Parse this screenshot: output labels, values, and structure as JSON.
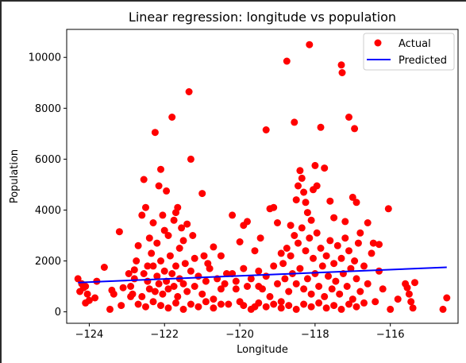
{
  "chart_data": {
    "type": "scatter",
    "title": "Linear regression: longitude vs population",
    "xlabel": "Longitude",
    "ylabel": "Population",
    "xlim": [
      -124.6,
      -114.2
    ],
    "ylim": [
      -450,
      11100
    ],
    "xticks": [
      -124,
      -122,
      -120,
      -118,
      -116
    ],
    "xtick_labels": [
      "−124",
      "−122",
      "−120",
      "−118",
      "−116"
    ],
    "yticks": [
      0,
      2000,
      4000,
      6000,
      8000,
      10000
    ],
    "ytick_labels": [
      "0",
      "2000",
      "4000",
      "6000",
      "8000",
      "10000"
    ],
    "grid": false,
    "legend_position": "top-right",
    "colors": {
      "actual": "#ff0000",
      "predicted": "#0000ff"
    },
    "series": [
      {
        "name": "Actual",
        "kind": "scatter",
        "points": [
          [
            -124.3,
            1300
          ],
          [
            -124.25,
            800
          ],
          [
            -124.2,
            1100
          ],
          [
            -124.15,
            950
          ],
          [
            -124.1,
            1000
          ],
          [
            -124.05,
            700
          ],
          [
            -124.1,
            350
          ],
          [
            -124.0,
            450
          ],
          [
            -123.85,
            550
          ],
          [
            -123.8,
            1200
          ],
          [
            -123.6,
            1750
          ],
          [
            -123.45,
            100
          ],
          [
            -123.4,
            850
          ],
          [
            -123.35,
            700
          ],
          [
            -123.2,
            3150
          ],
          [
            -123.1,
            950
          ],
          [
            -123.15,
            250
          ],
          [
            -122.95,
            1500
          ],
          [
            -122.9,
            600
          ],
          [
            -122.8,
            1650
          ],
          [
            -122.75,
            2000
          ],
          [
            -122.7,
            2600
          ],
          [
            -122.6,
            3800
          ],
          [
            -122.55,
            5200
          ],
          [
            -122.5,
            4100
          ],
          [
            -122.45,
            1800
          ],
          [
            -122.4,
            2900
          ],
          [
            -122.35,
            2300
          ],
          [
            -122.3,
            3500
          ],
          [
            -122.25,
            7050
          ],
          [
            -122.2,
            2700
          ],
          [
            -122.15,
            4950
          ],
          [
            -122.1,
            5600
          ],
          [
            -122.05,
            3800
          ],
          [
            -122.0,
            3200
          ],
          [
            -121.95,
            4750
          ],
          [
            -121.9,
            3000
          ],
          [
            -121.8,
            7650
          ],
          [
            -121.75,
            3600
          ],
          [
            -121.7,
            3900
          ],
          [
            -121.65,
            4100
          ],
          [
            -121.6,
            2500
          ],
          [
            -121.55,
            3300
          ],
          [
            -121.5,
            2800
          ],
          [
            -121.4,
            3450
          ],
          [
            -121.35,
            8650
          ],
          [
            -121.3,
            6000
          ],
          [
            -121.25,
            3000
          ],
          [
            -121.2,
            2100
          ],
          [
            -121.0,
            4650
          ],
          [
            -120.95,
            2200
          ],
          [
            -120.85,
            1900
          ],
          [
            -120.7,
            2550
          ],
          [
            -120.5,
            2200
          ],
          [
            -120.35,
            1500
          ],
          [
            -120.2,
            3800
          ],
          [
            -120.1,
            900
          ],
          [
            -120.0,
            2750
          ],
          [
            -119.9,
            3400
          ],
          [
            -119.8,
            3550
          ],
          [
            -119.6,
            2400
          ],
          [
            -119.5,
            1000
          ],
          [
            -119.45,
            2900
          ],
          [
            -119.3,
            7150
          ],
          [
            -119.2,
            4050
          ],
          [
            -119.1,
            4100
          ],
          [
            -119.0,
            3500
          ],
          [
            -118.9,
            2300
          ],
          [
            -118.75,
            9850
          ],
          [
            -118.65,
            3400
          ],
          [
            -118.55,
            7450
          ],
          [
            -118.5,
            4400
          ],
          [
            -118.45,
            4950
          ],
          [
            -118.4,
            5550
          ],
          [
            -118.35,
            5250
          ],
          [
            -118.3,
            4700
          ],
          [
            -118.25,
            4300
          ],
          [
            -118.2,
            3900
          ],
          [
            -118.15,
            10500
          ],
          [
            -118.1,
            3600
          ],
          [
            -118.05,
            4800
          ],
          [
            -118.0,
            5750
          ],
          [
            -117.95,
            4950
          ],
          [
            -117.85,
            7250
          ],
          [
            -117.75,
            5650
          ],
          [
            -117.6,
            4350
          ],
          [
            -117.5,
            3700
          ],
          [
            -117.3,
            9700
          ],
          [
            -117.28,
            9400
          ],
          [
            -117.2,
            3550
          ],
          [
            -117.1,
            7650
          ],
          [
            -117.0,
            4500
          ],
          [
            -116.95,
            7200
          ],
          [
            -116.9,
            4300
          ],
          [
            -116.8,
            3100
          ],
          [
            -116.6,
            3500
          ],
          [
            -116.45,
            2700
          ],
          [
            -116.3,
            2650
          ],
          [
            -116.05,
            4050
          ],
          [
            -116.0,
            100
          ],
          [
            -115.8,
            500
          ],
          [
            -115.6,
            1100
          ],
          [
            -115.55,
            950
          ],
          [
            -115.5,
            700
          ],
          [
            -115.45,
            400
          ],
          [
            -115.4,
            150
          ],
          [
            -115.35,
            1150
          ],
          [
            -114.6,
            100
          ],
          [
            -114.5,
            550
          ],
          [
            -122.9,
            1000
          ],
          [
            -122.85,
            700
          ],
          [
            -122.8,
            1300
          ],
          [
            -122.6,
            600
          ],
          [
            -122.55,
            1500
          ],
          [
            -122.45,
            1200
          ],
          [
            -122.4,
            900
          ],
          [
            -122.3,
            1800
          ],
          [
            -122.25,
            800
          ],
          [
            -122.2,
            1400
          ],
          [
            -122.15,
            1100
          ],
          [
            -122.1,
            2000
          ],
          [
            -122.05,
            700
          ],
          [
            -122.0,
            1600
          ],
          [
            -121.95,
            1200
          ],
          [
            -121.9,
            900
          ],
          [
            -121.85,
            2200
          ],
          [
            -121.8,
            1500
          ],
          [
            -121.75,
            1000
          ],
          [
            -121.7,
            1800
          ],
          [
            -121.65,
            600
          ],
          [
            -121.6,
            1300
          ],
          [
            -121.5,
            1100
          ],
          [
            -121.45,
            1900
          ],
          [
            -121.4,
            800
          ],
          [
            -121.3,
            1600
          ],
          [
            -121.2,
            1000
          ],
          [
            -121.1,
            1400
          ],
          [
            -121.0,
            700
          ],
          [
            -120.9,
            1200
          ],
          [
            -120.8,
            1700
          ],
          [
            -120.7,
            500
          ],
          [
            -120.6,
            1300
          ],
          [
            -120.5,
            900
          ],
          [
            -120.4,
            1100
          ],
          [
            -120.3,
            300
          ],
          [
            -120.2,
            1500
          ],
          [
            -120.1,
            1200
          ],
          [
            -120.0,
            400
          ],
          [
            -119.9,
            1700
          ],
          [
            -119.8,
            1000
          ],
          [
            -119.7,
            1300
          ],
          [
            -119.6,
            200
          ],
          [
            -119.5,
            1600
          ],
          [
            -119.4,
            900
          ],
          [
            -119.3,
            1400
          ],
          [
            -119.2,
            600
          ],
          [
            -119.1,
            1800
          ],
          [
            -119.0,
            1100
          ],
          [
            -118.9,
            400
          ],
          [
            -118.85,
            1900
          ],
          [
            -118.8,
            1300
          ],
          [
            -118.75,
            2500
          ],
          [
            -118.7,
            800
          ],
          [
            -118.65,
            2200
          ],
          [
            -118.6,
            1500
          ],
          [
            -118.55,
            3000
          ],
          [
            -118.5,
            1100
          ],
          [
            -118.45,
            2700
          ],
          [
            -118.4,
            1700
          ],
          [
            -118.35,
            3300
          ],
          [
            -118.3,
            900
          ],
          [
            -118.25,
            2400
          ],
          [
            -118.2,
            1300
          ],
          [
            -118.15,
            2900
          ],
          [
            -118.1,
            700
          ],
          [
            -118.05,
            2100
          ],
          [
            -118.0,
            1500
          ],
          [
            -117.95,
            3100
          ],
          [
            -117.9,
            1000
          ],
          [
            -117.85,
            2500
          ],
          [
            -117.8,
            1800
          ],
          [
            -117.75,
            600
          ],
          [
            -117.7,
            2200
          ],
          [
            -117.65,
            1400
          ],
          [
            -117.6,
            2800
          ],
          [
            -117.55,
            900
          ],
          [
            -117.5,
            1900
          ],
          [
            -117.45,
            1200
          ],
          [
            -117.4,
            2600
          ],
          [
            -117.35,
            700
          ],
          [
            -117.3,
            2100
          ],
          [
            -117.25,
            1500
          ],
          [
            -117.2,
            2900
          ],
          [
            -117.15,
            1000
          ],
          [
            -117.1,
            2400
          ],
          [
            -117.05,
            1700
          ],
          [
            -117.0,
            500
          ],
          [
            -116.95,
            2000
          ],
          [
            -116.9,
            1300
          ],
          [
            -116.85,
            2700
          ],
          [
            -116.8,
            800
          ],
          [
            -116.7,
            1800
          ],
          [
            -116.6,
            1100
          ],
          [
            -116.5,
            2300
          ],
          [
            -116.4,
            400
          ],
          [
            -116.3,
            1600
          ],
          [
            -116.2,
            900
          ],
          [
            -122.7,
            300
          ],
          [
            -122.5,
            200
          ],
          [
            -122.3,
            400
          ],
          [
            -122.1,
            250
          ],
          [
            -121.9,
            150
          ],
          [
            -121.7,
            350
          ],
          [
            -121.5,
            100
          ],
          [
            -121.3,
            300
          ],
          [
            -121.1,
            200
          ],
          [
            -120.9,
            400
          ],
          [
            -120.7,
            150
          ],
          [
            -120.5,
            300
          ],
          [
            -119.9,
            250
          ],
          [
            -119.7,
            100
          ],
          [
            -119.5,
            350
          ],
          [
            -119.3,
            200
          ],
          [
            -119.1,
            300
          ],
          [
            -118.9,
            150
          ],
          [
            -118.7,
            250
          ],
          [
            -118.5,
            100
          ],
          [
            -118.3,
            300
          ],
          [
            -118.1,
            200
          ],
          [
            -117.9,
            350
          ],
          [
            -117.7,
            150
          ],
          [
            -117.5,
            250
          ],
          [
            -117.3,
            100
          ],
          [
            -117.1,
            300
          ],
          [
            -116.9,
            200
          ],
          [
            -116.7,
            350
          ]
        ]
      },
      {
        "name": "Predicted",
        "kind": "line",
        "x": [
          -124.3,
          -114.5
        ],
        "y": [
          1150,
          1750
        ]
      }
    ]
  }
}
